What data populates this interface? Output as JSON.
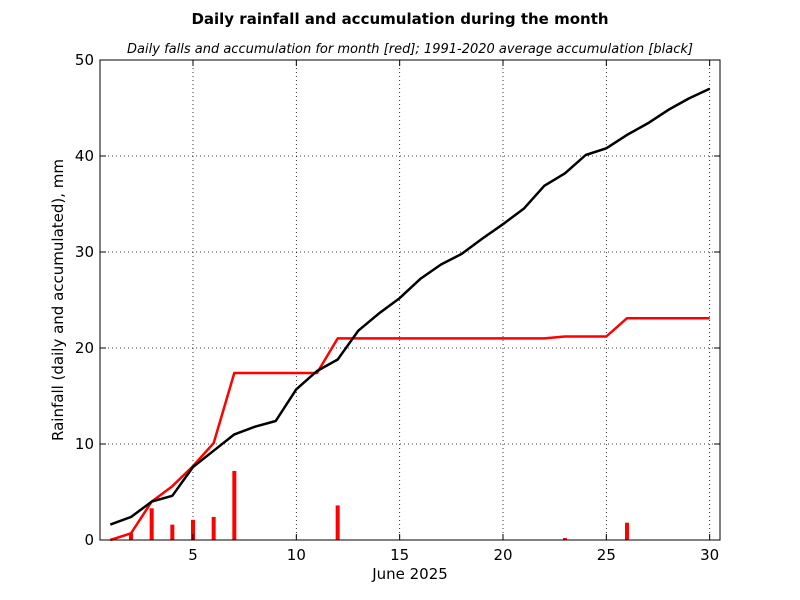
{
  "chart_data": {
    "type": "line",
    "title": "Daily rainfall and accumulation during the month",
    "subtitle": "Daily falls and accumulation for month [red]; 1991-2020 average accumulation [black]",
    "xlabel": "June 2025",
    "ylabel": "Rainfall (daily and accumulated), mm",
    "xlim": [
      0.5,
      30.5
    ],
    "ylim": [
      0,
      50
    ],
    "xticks": [
      5,
      10,
      15,
      20,
      25,
      30
    ],
    "yticks": [
      0,
      10,
      20,
      30,
      40,
      50
    ],
    "grid": true,
    "colors": {
      "daily": "#ff0000",
      "accumulation": "#ff0000",
      "average": "#000000"
    },
    "daily_falls": {
      "x": [
        1,
        2,
        3,
        4,
        5,
        6,
        7,
        8,
        9,
        10,
        11,
        12,
        13,
        14,
        15,
        16,
        17,
        18,
        19,
        20,
        21,
        22,
        23,
        24,
        25,
        26,
        27,
        28,
        29,
        30
      ],
      "values": [
        0,
        0.7,
        3.3,
        1.6,
        2.1,
        2.4,
        7.2,
        0,
        0,
        0,
        0,
        3.6,
        0,
        0,
        0,
        0,
        0,
        0,
        0,
        0,
        0,
        0,
        0.2,
        0,
        0,
        1.8,
        0,
        0,
        0,
        0
      ]
    },
    "series": [
      {
        "key": "accumulation",
        "x": [
          1,
          2,
          3,
          4,
          5,
          6,
          7,
          8,
          9,
          10,
          11,
          12,
          13,
          14,
          15,
          16,
          17,
          18,
          19,
          20,
          21,
          22,
          23,
          24,
          25,
          26,
          27,
          28,
          29,
          30
        ],
        "values": [
          0,
          0.7,
          4.0,
          5.6,
          7.7,
          10.1,
          17.4,
          17.4,
          17.4,
          17.4,
          17.4,
          21.0,
          21.0,
          21.0,
          21.0,
          21.0,
          21.0,
          21.0,
          21.0,
          21.0,
          21.0,
          21.0,
          21.2,
          21.2,
          21.2,
          23.1,
          23.1,
          23.1,
          23.1,
          23.1
        ]
      },
      {
        "key": "average",
        "x": [
          1,
          2,
          3,
          4,
          5,
          6,
          7,
          8,
          9,
          10,
          11,
          12,
          13,
          14,
          15,
          16,
          17,
          18,
          19,
          20,
          21,
          22,
          23,
          24,
          25,
          26,
          27,
          28,
          29,
          30
        ],
        "values": [
          1.6,
          2.4,
          4.0,
          4.6,
          7.6,
          9.3,
          11.0,
          11.8,
          12.4,
          15.7,
          17.6,
          18.8,
          21.8,
          23.6,
          25.2,
          27.2,
          28.7,
          29.8,
          31.4,
          32.9,
          34.5,
          36.9,
          38.2,
          40.1,
          40.8,
          42.2,
          43.4,
          44.8,
          46.0,
          47.0
        ]
      }
    ]
  }
}
